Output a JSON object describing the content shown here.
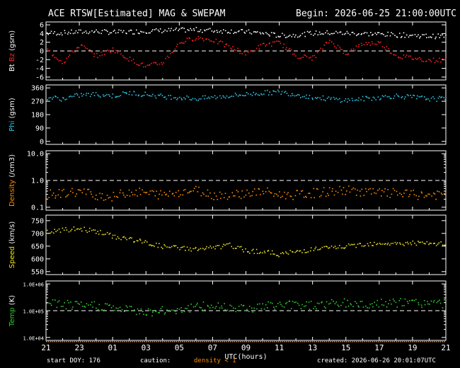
{
  "header": {
    "title": "ACE RTSW[Estimated] MAG & SWEPAM",
    "begin": "Begin: 2026-06-25 21:00:00UTC"
  },
  "footer": {
    "start_doy": "start DOY: 176",
    "caution_label": "caution:",
    "caution_value": "density < 1",
    "created": "created: 2026-06-26 20:01:07UTC"
  },
  "colors": {
    "bt": "#ffffff",
    "bz": "#ff2020",
    "phi": "#30c8e8",
    "density": "#ff8c00",
    "speed": "#e8e020",
    "temp": "#30d030",
    "axis": "#ffffff"
  },
  "chart_data": {
    "type": "scatter",
    "xlabel": "UTC(hours)",
    "x_ticks": [
      "21",
      "23",
      "01",
      "03",
      "05",
      "07",
      "09",
      "11",
      "13",
      "15",
      "17",
      "19",
      "21"
    ],
    "x_range_hours": [
      0,
      24
    ],
    "panels": [
      {
        "id": "mag",
        "ylabel_parts": [
          {
            "text": "Bt",
            "color": "#ffffff"
          },
          {
            "text": "Bz",
            "color": "#ff2020"
          },
          {
            "text": "(gsm)",
            "color": "#ffffff"
          }
        ],
        "ylim": [
          -6,
          6
        ],
        "yticks": [
          6,
          4,
          2,
          0,
          -2,
          -4,
          -6
        ],
        "ref_line": 0,
        "series": [
          {
            "name": "Bt",
            "color": "#ffffff",
            "x": [
              0,
              1,
              2,
              3,
              4,
              5,
              6,
              7,
              8,
              9,
              10,
              11,
              12,
              13,
              14,
              15,
              16,
              17,
              18,
              19,
              20,
              21,
              22,
              23
            ],
            "y": [
              4.2,
              4.3,
              4.5,
              4.6,
              4.4,
              4.5,
              4.7,
              4.8,
              4.9,
              5.0,
              4.8,
              4.7,
              4.5,
              4.2,
              3.6,
              3.8,
              4.2,
              4.3,
              4.2,
              4.1,
              4.0,
              3.8,
              3.7,
              3.5
            ]
          },
          {
            "name": "Bz",
            "color": "#ff2020",
            "x": [
              0,
              1,
              2,
              3,
              4,
              5,
              6,
              7,
              8,
              9,
              10,
              11,
              12,
              13,
              14,
              15,
              16,
              17,
              18,
              19,
              20,
              21,
              22,
              23
            ],
            "y": [
              0.5,
              -2.5,
              1.5,
              -1.0,
              0.5,
              -1.8,
              -3.5,
              -2.5,
              2.0,
              3.2,
              2.6,
              1.0,
              -0.5,
              1.5,
              2.0,
              -1.0,
              -1.5,
              2.5,
              -0.5,
              1.8,
              2.0,
              -1.0,
              -1.5,
              -2.0
            ]
          }
        ]
      },
      {
        "id": "phi",
        "ylabel_parts": [
          {
            "text": "Phi",
            "color": "#30c8e8"
          },
          {
            "text": "(gsm)",
            "color": "#ffffff"
          }
        ],
        "ylim": [
          0,
          360
        ],
        "yticks": [
          360,
          270,
          180,
          90,
          0
        ],
        "series": [
          {
            "name": "Phi",
            "color": "#30c8e8",
            "x": [
              0,
              1,
              2,
              3,
              4,
              5,
              6,
              7,
              8,
              9,
              10,
              11,
              12,
              13,
              14,
              15,
              16,
              17,
              18,
              19,
              20,
              21,
              22,
              23
            ],
            "y": [
              300,
              290,
              315,
              320,
              310,
              330,
              320,
              305,
              300,
              290,
              300,
              310,
              320,
              330,
              335,
              320,
              300,
              290,
              280,
              290,
              300,
              310,
              300,
              290
            ]
          }
        ]
      },
      {
        "id": "density",
        "ylabel_parts": [
          {
            "text": "Density",
            "color": "#ff8c00"
          },
          {
            "text": "(/cm3)",
            "color": "#ffffff"
          }
        ],
        "ylim": [
          0.1,
          10
        ],
        "log": true,
        "ytick_labels": [
          "10.0",
          "1.0",
          "0.1"
        ],
        "yticks": [
          10,
          1,
          0.1
        ],
        "ref_line": 1,
        "series": [
          {
            "name": "Density",
            "color": "#ff8c00",
            "x": [
              0,
              1,
              2,
              3,
              4,
              5,
              6,
              7,
              8,
              9,
              10,
              11,
              12,
              13,
              14,
              15,
              16,
              17,
              18,
              19,
              20,
              21,
              22,
              23
            ],
            "y": [
              0.3,
              0.35,
              0.4,
              0.3,
              0.25,
              0.4,
              0.35,
              0.3,
              0.4,
              0.45,
              0.3,
              0.3,
              0.35,
              0.4,
              0.3,
              0.3,
              0.35,
              0.4,
              0.45,
              0.4,
              0.35,
              0.35,
              0.3,
              0.3
            ]
          }
        ]
      },
      {
        "id": "speed",
        "ylabel_parts": [
          {
            "text": "Speed",
            "color": "#e8e020"
          },
          {
            "text": "(km/s)",
            "color": "#ffffff"
          }
        ],
        "ylim": [
          550,
          760
        ],
        "yticks": [
          750,
          700,
          650,
          600,
          550
        ],
        "series": [
          {
            "name": "Speed",
            "color": "#e8e020",
            "x": [
              0,
              1,
              2,
              3,
              4,
              5,
              6,
              7,
              8,
              9,
              10,
              11,
              12,
              13,
              14,
              15,
              16,
              17,
              18,
              19,
              20,
              21,
              22,
              23
            ],
            "y": [
              705,
              715,
              720,
              710,
              690,
              680,
              665,
              650,
              645,
              640,
              645,
              655,
              635,
              630,
              620,
              630,
              640,
              645,
              650,
              660,
              665,
              660,
              665,
              660
            ]
          }
        ]
      },
      {
        "id": "temp",
        "ylabel_parts": [
          {
            "text": "Temp",
            "color": "#30d030"
          },
          {
            "text": "(K)",
            "color": "#ffffff"
          }
        ],
        "ylim": [
          10000,
          1000000
        ],
        "log": true,
        "ytick_labels": [
          "1.0E+06",
          "1.0E+05",
          "1.0E+04"
        ],
        "yticks": [
          1000000,
          100000,
          10000
        ],
        "ref_line": 100000,
        "series": [
          {
            "name": "Temp",
            "color": "#30d030",
            "x": [
              0,
              1,
              2,
              3,
              4,
              5,
              6,
              7,
              8,
              9,
              10,
              11,
              12,
              13,
              14,
              15,
              16,
              17,
              18,
              19,
              20,
              21,
              22,
              23
            ],
            "y": [
              200000,
              180000,
              150000,
              170000,
              130000,
              110000,
              95000,
              100000,
              120000,
              140000,
              160000,
              150000,
              130000,
              150000,
              170000,
              180000,
              170000,
              190000,
              200000,
              180000,
              190000,
              200000,
              210000,
              200000
            ]
          }
        ]
      }
    ]
  }
}
